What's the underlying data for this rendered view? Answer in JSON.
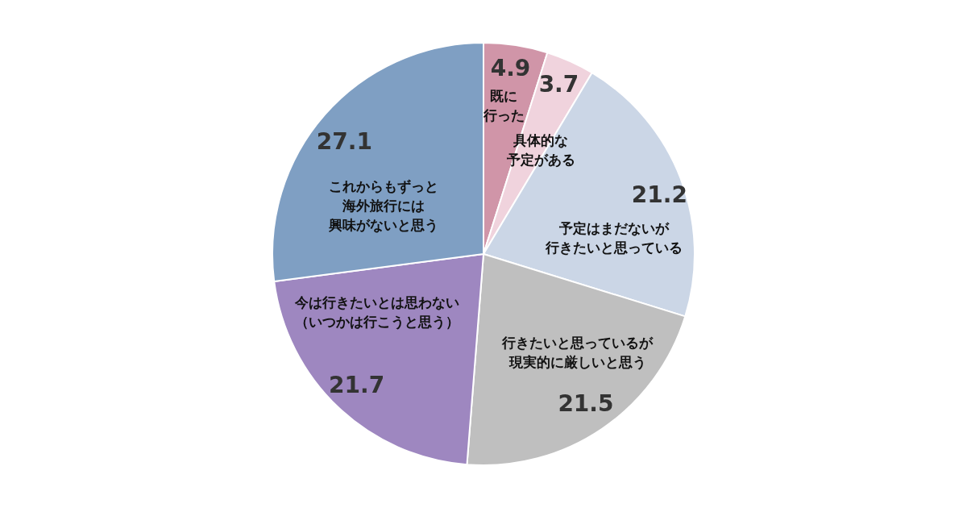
{
  "chart_data": {
    "type": "pie",
    "categories": [
      "既に行った",
      "具体的な予定がある",
      "予定はまだないが行きたいと思っている",
      "行きたいと思っているが現実的に厳しいと思う",
      "今は行きたいとは思わない（いつかは行こうと思う）",
      "これからもずっと海外旅行には興味がないと思う"
    ],
    "values": [
      4.9,
      3.7,
      21.2,
      21.5,
      21.7,
      27.1
    ],
    "colors": [
      "#d095a8",
      "#f0d3dd",
      "#cbd6e6",
      "#bfbfbf",
      "#9e87c0",
      "#7f9fc3"
    ],
    "data_labels": true,
    "legend": false
  }
}
